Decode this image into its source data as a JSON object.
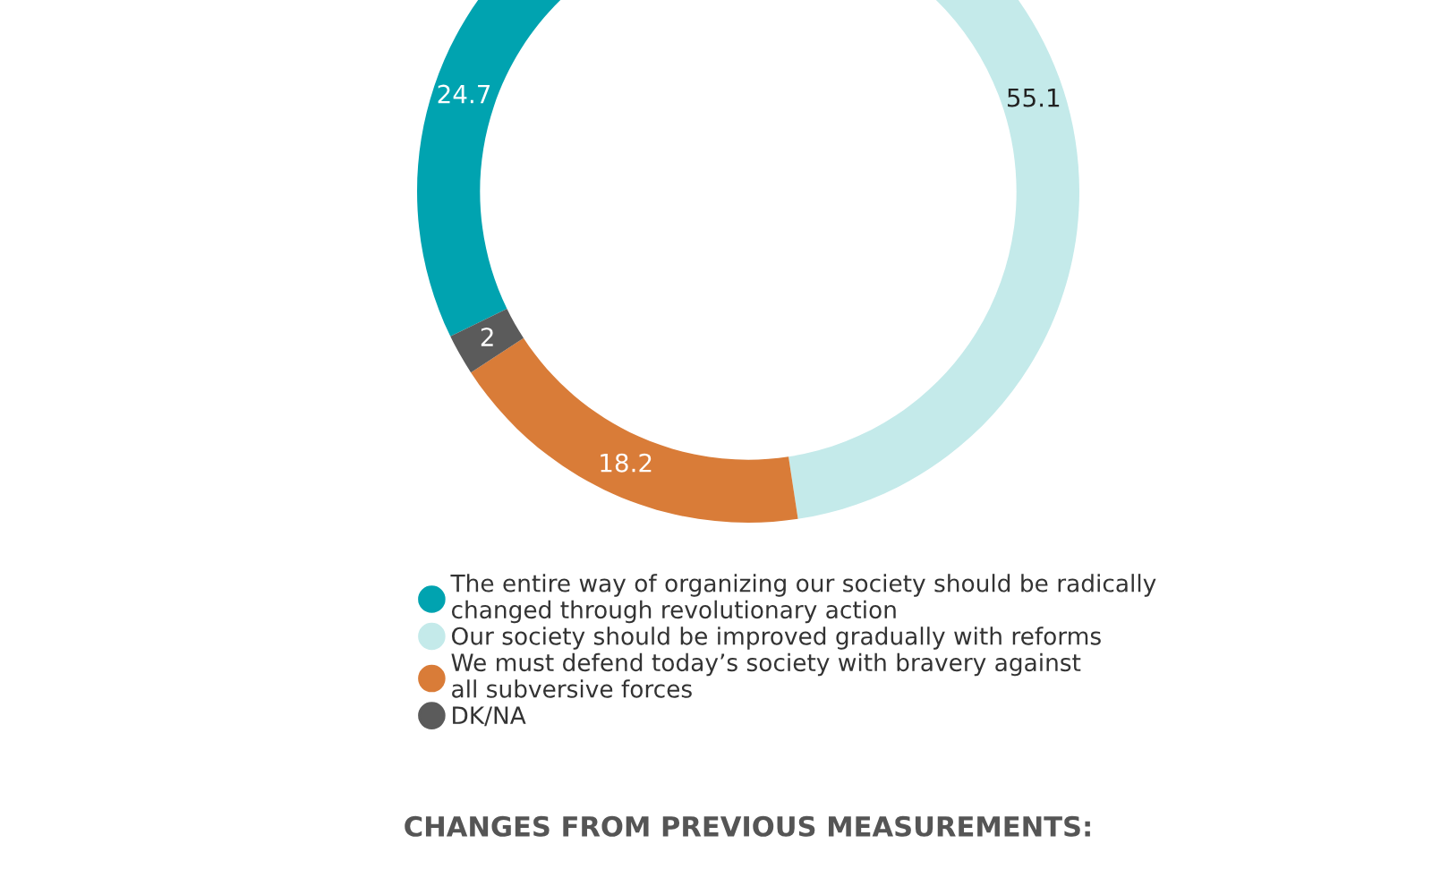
{
  "chart_data": {
    "type": "donut",
    "categories": [
      "The entire way of organizing our society should be radically\nchanged through revolutionary action",
      "Our society should be improved gradually with reforms",
      "We must defend today’s society with bravery against\nall subversive forces",
      "DK/NA"
    ],
    "values": [
      24.7,
      55.1,
      18.2,
      2
    ],
    "colors": [
      "#00a3b0",
      "#c4eaea",
      "#d97c38",
      "#5b5b5b"
    ],
    "data_labels": true,
    "legend": "bottom",
    "annotations": [
      "CHANGES FROM PREVIOUS MEASUREMENTS:"
    ]
  }
}
